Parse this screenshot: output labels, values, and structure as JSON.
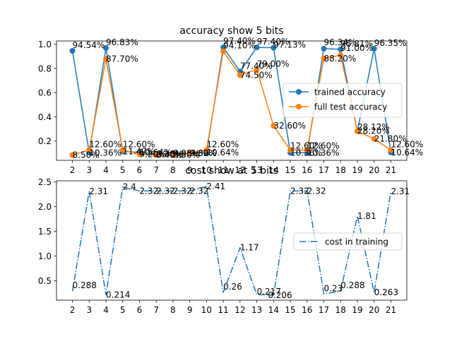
{
  "chart_data": [
    {
      "type": "line",
      "title": "accuracy show 5 bits",
      "xlabel": "",
      "ylabel": "",
      "x": [
        2,
        3,
        4,
        5,
        6,
        7,
        8,
        9,
        10,
        11,
        12,
        13,
        14,
        15,
        16,
        17,
        18,
        19,
        20,
        21
      ],
      "xlim": [
        1.05,
        21.95
      ],
      "ylim": [
        0.041,
        1.027
      ],
      "yticks": [
        0.2,
        0.4,
        0.6,
        0.8,
        1.0
      ],
      "ytick_labels": [
        "0.2",
        "0.4",
        "0.6",
        "0.8",
        "1.0"
      ],
      "grid": false,
      "legend_position": "center-right",
      "series": [
        {
          "name": "trained accuracy",
          "color": "#1f77b4",
          "marker": "circle",
          "line_style": "solid",
          "values": [
            0.9454,
            0.1036,
            0.9683,
            0.1147,
            0.1064,
            0.0938,
            0.0998,
            0.0982,
            0.1064,
            0.974,
            0.774,
            0.974,
            0.9713,
            0.1036,
            0.1036,
            0.9634,
            0.9581,
            0.2812,
            0.9635,
            0.1064
          ],
          "labels": [
            "94.54%",
            "10.36%",
            "96.83%",
            "11.47%",
            "10.64%",
            "9.38%",
            "9.98%",
            "9.82%",
            "10.64%",
            "97.40%",
            "77.40%",
            "97.40%",
            "97.13%",
            "10.36%",
            "10.36%",
            "96.34%",
            "95.81%",
            "28.12%",
            "96.35%",
            "10.64%"
          ]
        },
        {
          "name": "full test accuracy",
          "color": "#ff7f0e",
          "marker": "circle",
          "line_style": "solid",
          "values": [
            0.085,
            0.126,
            0.877,
            0.126,
            0.092,
            0.084,
            0.085,
            0.098,
            0.126,
            0.941,
            0.745,
            0.79,
            0.326,
            0.126,
            0.126,
            0.882,
            0.91,
            0.282,
            0.218,
            0.126
          ],
          "labels": [
            "8.50%",
            "12.60%",
            "87.70%",
            "12.60%",
            "9.20%",
            "8.40%",
            "8.50%",
            "9.80%",
            "12.60%",
            "94.10%",
            "74.50%",
            "79.00%",
            "32.60%",
            "12.60%",
            "12.60%",
            "88.20%",
            "91.00%",
            "28.20%",
            "21.80%",
            "12.60%"
          ]
        }
      ]
    },
    {
      "type": "line",
      "title": "cost show at 5 bits",
      "xlabel": "",
      "ylabel": "",
      "x": [
        2,
        3,
        4,
        5,
        6,
        7,
        8,
        9,
        10,
        11,
        12,
        13,
        14,
        15,
        16,
        17,
        18,
        19,
        20,
        21
      ],
      "xlim": [
        1.05,
        21.95
      ],
      "ylim": [
        0.105,
        2.525
      ],
      "yticks": [
        0.5,
        1.0,
        1.5,
        2.0,
        2.5
      ],
      "ytick_labels": [
        "0.5",
        "1.0",
        "1.5",
        "2.0",
        "2.5"
      ],
      "grid": false,
      "legend_position": "center-right",
      "series": [
        {
          "name": "cost in training",
          "color": "#1f77b4",
          "marker": "none",
          "line_style": "dashdot",
          "values": [
            0.288,
            2.31,
            0.214,
            2.4,
            2.32,
            2.32,
            2.32,
            2.32,
            2.41,
            0.26,
            1.17,
            0.217,
            0.206,
            2.32,
            2.32,
            0.23,
            0.288,
            1.81,
            0.263,
            2.31
          ],
          "labels": [
            "0.288",
            "2.31",
            "0.214",
            "2.4",
            "2.32",
            "2.32",
            "2.32",
            "2.32",
            "2.41",
            "0.26",
            "1.17",
            "0.217",
            "0.206",
            "2.32",
            "2.32",
            "0.23",
            "0.288",
            "1.81",
            "0.263",
            "2.31"
          ]
        }
      ]
    }
  ]
}
